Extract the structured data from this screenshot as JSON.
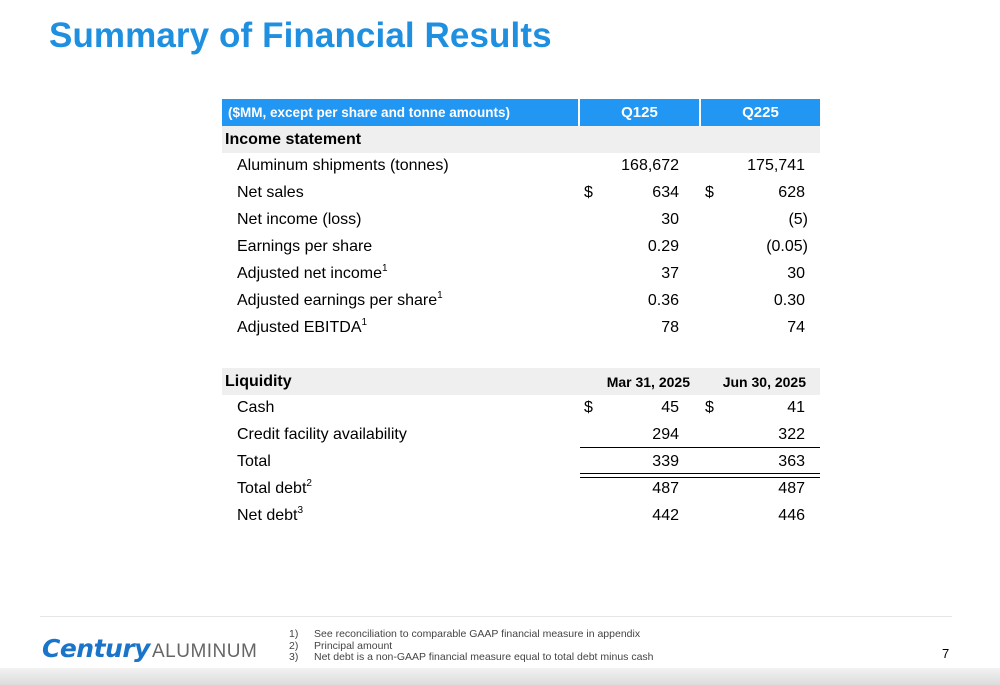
{
  "slide": {
    "title": "Summary of Financial Results",
    "page_number": "7"
  },
  "table": {
    "header": {
      "label": "($MM, except per share and tonne amounts)",
      "col1": "Q125",
      "col2": "Q225"
    },
    "income": {
      "section_label": "Income statement",
      "rows": [
        {
          "label": "Aluminum shipments (tonnes)",
          "sup": "",
          "cur1": "",
          "v1": "168,672",
          "cur2": "",
          "v2": "175,741"
        },
        {
          "label": "Net sales",
          "sup": "",
          "cur1": "$",
          "v1": "634",
          "cur2": "$",
          "v2": "628"
        },
        {
          "label": "Net income (loss)",
          "sup": "",
          "cur1": "",
          "v1": "30",
          "cur2": "",
          "v2": "(5)"
        },
        {
          "label": "Earnings per share",
          "sup": "",
          "cur1": "",
          "v1": "0.29",
          "cur2": "",
          "v2": "(0.05)"
        },
        {
          "label": "Adjusted net income",
          "sup": "1",
          "cur1": "",
          "v1": "37",
          "cur2": "",
          "v2": "30"
        },
        {
          "label": "Adjusted earnings per share",
          "sup": "1",
          "cur1": "",
          "v1": "0.36",
          "cur2": "",
          "v2": "0.30"
        },
        {
          "label": "Adjusted EBITDA",
          "sup": "1",
          "cur1": "",
          "v1": "78",
          "cur2": "",
          "v2": "74"
        }
      ]
    },
    "liquidity": {
      "section_label": "Liquidity",
      "col1": "Mar 31, 2025",
      "col2": "Jun 30, 2025",
      "rows": [
        {
          "label": "Cash",
          "sup": "",
          "cur1": "$",
          "v1": "45",
          "cur2": "$",
          "v2": "41"
        },
        {
          "label": "Credit facility availability",
          "sup": "",
          "cur1": "",
          "v1": "294",
          "cur2": "",
          "v2": "322"
        },
        {
          "label": "Total",
          "sup": "",
          "cur1": "",
          "v1": "339",
          "cur2": "",
          "v2": "363"
        },
        {
          "label": "Total debt",
          "sup": "2",
          "cur1": "",
          "v1": "487",
          "cur2": "",
          "v2": "487"
        },
        {
          "label": "Net debt",
          "sup": "3",
          "cur1": "",
          "v1": "442",
          "cur2": "",
          "v2": "446"
        }
      ]
    }
  },
  "footer": {
    "logo_bold": "Century",
    "logo_light": "ALUMINUM",
    "notes": [
      {
        "num": "1)",
        "text": "See reconciliation to comparable GAAP financial measure in appendix"
      },
      {
        "num": "2)",
        "text": "Principal amount"
      },
      {
        "num": "3)",
        "text": "Net debt is a non-GAAP financial measure equal to total debt minus cash"
      }
    ]
  },
  "colors": {
    "title": "#1f8fe0",
    "header_bg": "#2196f3",
    "section_bg": "#efefef",
    "logo": "#1a74c9"
  }
}
